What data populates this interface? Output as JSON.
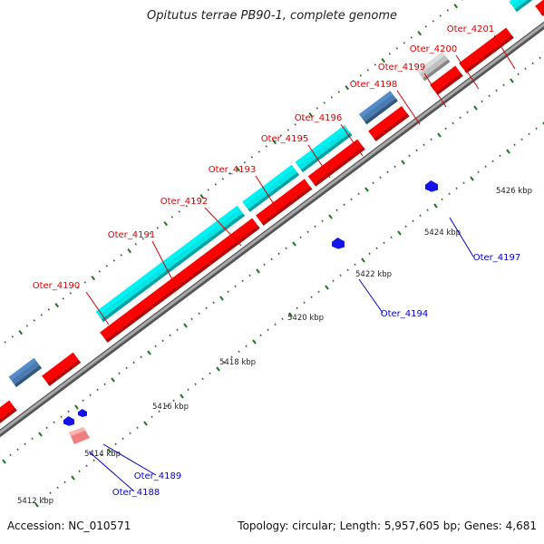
{
  "title": "Opitutus terrae PB90-1, complete genome",
  "footer": {
    "accession_label": "Accession:",
    "accession": "NC_010571",
    "topology_label": "Topology:",
    "topology": "circular",
    "length_label": "Length:",
    "length": "5,957,605 bp",
    "genes_label": "Genes:",
    "genes": "4,681"
  },
  "colors": {
    "backbone": "#8a8a8a",
    "forward_cds": "#ff0000",
    "reverse_cds": "#1414e6",
    "other_forward": "#00e5e5",
    "other_gray": "#c0c0c0",
    "pseudo_blue": "#4a7ab0",
    "pale_red": "#f08080",
    "label_forward": "#dd0000",
    "label_reverse": "#0000cc",
    "tick": "#1a7a1a"
  },
  "scale": {
    "ticks": [
      {
        "kbp": 5412,
        "label": "5412 kbp"
      },
      {
        "kbp": 5414,
        "label": "5414 kbp"
      },
      {
        "kbp": 5416,
        "label": "5416 kbp"
      },
      {
        "kbp": 5418,
        "label": "5418 kbp"
      },
      {
        "kbp": 5420,
        "label": "5420 kbp"
      },
      {
        "kbp": 5422,
        "label": "5422 kbp"
      },
      {
        "kbp": 5424,
        "label": "5424 kbp"
      },
      {
        "kbp": 5426,
        "label": "5426 kbp"
      }
    ]
  },
  "genes": [
    {
      "id": "Oter_4188",
      "strand": "reverse"
    },
    {
      "id": "Oter_4189",
      "strand": "reverse"
    },
    {
      "id": "Oter_4190",
      "strand": "forward"
    },
    {
      "id": "Oter_4191",
      "strand": "forward"
    },
    {
      "id": "Oter_4192",
      "strand": "forward"
    },
    {
      "id": "Oter_4193",
      "strand": "forward"
    },
    {
      "id": "Oter_4194",
      "strand": "reverse"
    },
    {
      "id": "Oter_4195",
      "strand": "forward"
    },
    {
      "id": "Oter_4196",
      "strand": "forward"
    },
    {
      "id": "Oter_4197",
      "strand": "reverse"
    },
    {
      "id": "Oter_4198",
      "strand": "forward"
    },
    {
      "id": "Oter_4199",
      "strand": "forward"
    },
    {
      "id": "Oter_4200",
      "strand": "forward"
    },
    {
      "id": "Oter_4201",
      "strand": "forward"
    }
  ]
}
